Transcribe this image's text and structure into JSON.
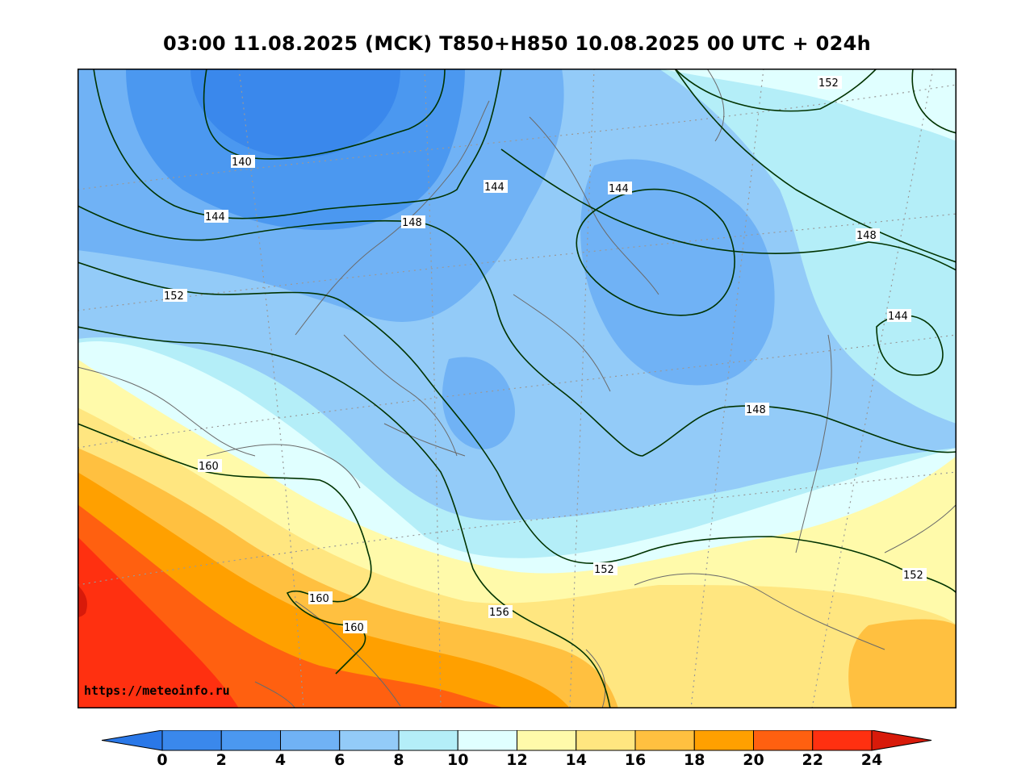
{
  "title": "03:00 11.08.2025 (MCK) T850+H850 10.08.2025 00 UTC + 024h",
  "watermark": "https://meteoinfo.ru",
  "colorbar": {
    "ticks": [
      "0",
      "2",
      "4",
      "6",
      "8",
      "10",
      "12",
      "14",
      "16",
      "18",
      "20",
      "22",
      "24"
    ],
    "colors": [
      "#3a88ec",
      "#4b98f0",
      "#70b2f5",
      "#93cbf8",
      "#b4eef8",
      "#e0ffff",
      "#fffaaa",
      "#ffe680",
      "#ffc040",
      "#ffa000",
      "#ff6010",
      "#ff3010"
    ],
    "under_color": "#2a78e8",
    "over_color": "#d81a0a"
  },
  "contour_labels": [
    {
      "text": "140"
    },
    {
      "text": "144"
    },
    {
      "text": "144"
    },
    {
      "text": "144"
    },
    {
      "text": "144"
    },
    {
      "text": "148"
    },
    {
      "text": "148"
    },
    {
      "text": "148"
    },
    {
      "text": "152"
    },
    {
      "text": "152"
    },
    {
      "text": "152"
    },
    {
      "text": "152"
    },
    {
      "text": "156"
    },
    {
      "text": "160"
    },
    {
      "text": "160"
    },
    {
      "text": "160"
    }
  ]
}
